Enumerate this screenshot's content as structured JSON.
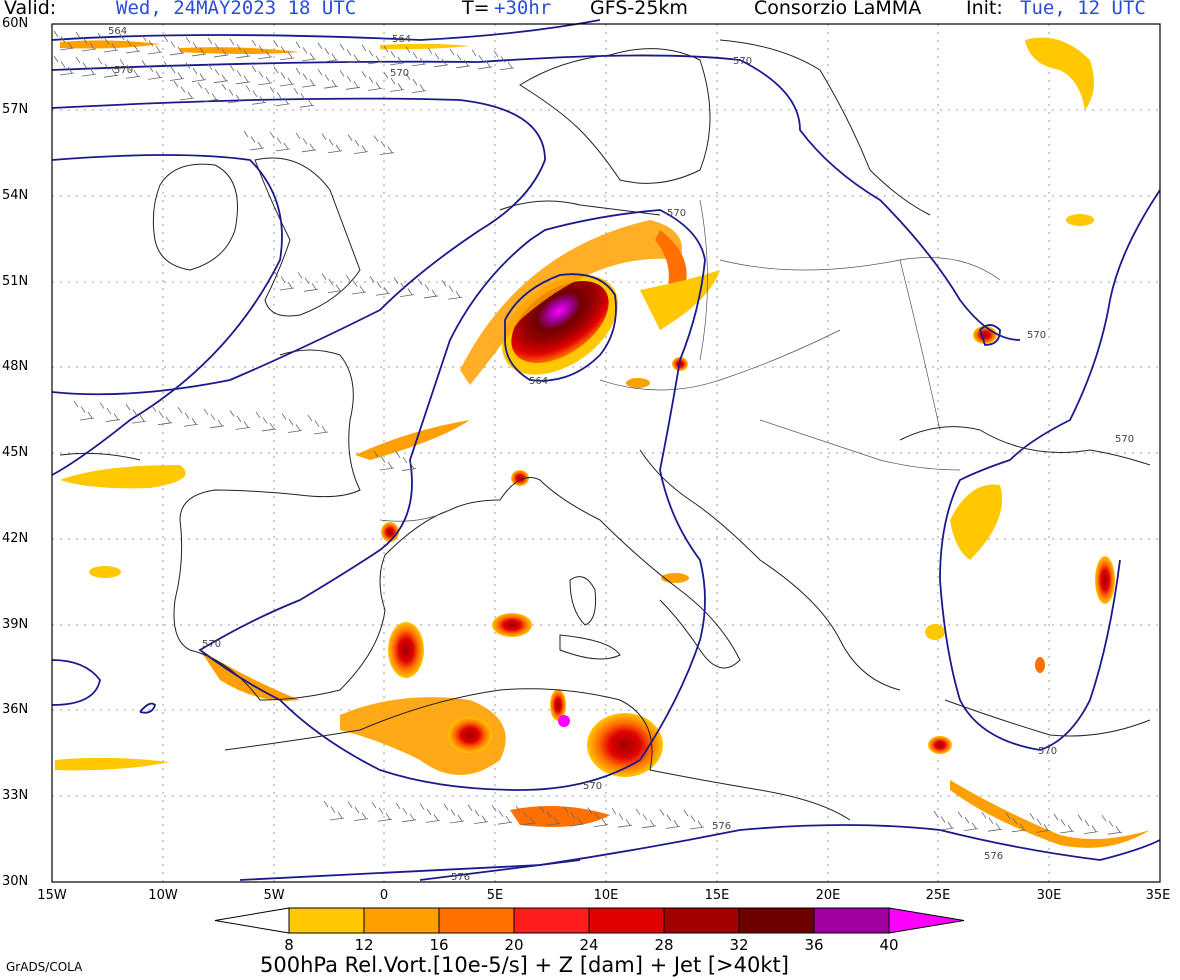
{
  "header": {
    "valid_label": "Valid:",
    "valid_value": "Wed, 24MAY2023 18 UTC",
    "t_label": "T=",
    "t_value": "+30hr",
    "model": "GFS-25km",
    "org": "Consorzio LaMMA",
    "init_label": "Init:",
    "init_value": "Tue, 12 UTC"
  },
  "axes": {
    "lat_labels": [
      "60N",
      "57N",
      "54N",
      "51N",
      "48N",
      "45N",
      "42N",
      "39N",
      "36N",
      "33N",
      "30N"
    ],
    "lon_labels": [
      "15W",
      "10W",
      "5W",
      "0",
      "5E",
      "10E",
      "15E",
      "20E",
      "25E",
      "30E",
      "35E"
    ]
  },
  "contours": {
    "labels": [
      "564",
      "564",
      "570",
      "570",
      "570",
      "570",
      "564",
      "570",
      "570",
      "570",
      "570",
      "576",
      "576",
      "576",
      "570"
    ]
  },
  "colorbar": {
    "ticks": [
      "8",
      "12",
      "16",
      "20",
      "24",
      "28",
      "32",
      "36",
      "40"
    ],
    "colors": [
      "#ffc800",
      "#ffa000",
      "#ff7000",
      "#ff1e1e",
      "#e00000",
      "#a00000",
      "#6e0000",
      "#a000a0",
      "#ff00ff"
    ]
  },
  "caption": "500hPa Rel.Vort.[10e-5/s] + Z [dam] + Jet [>40kt]",
  "credit": "GrADS/COLA"
}
